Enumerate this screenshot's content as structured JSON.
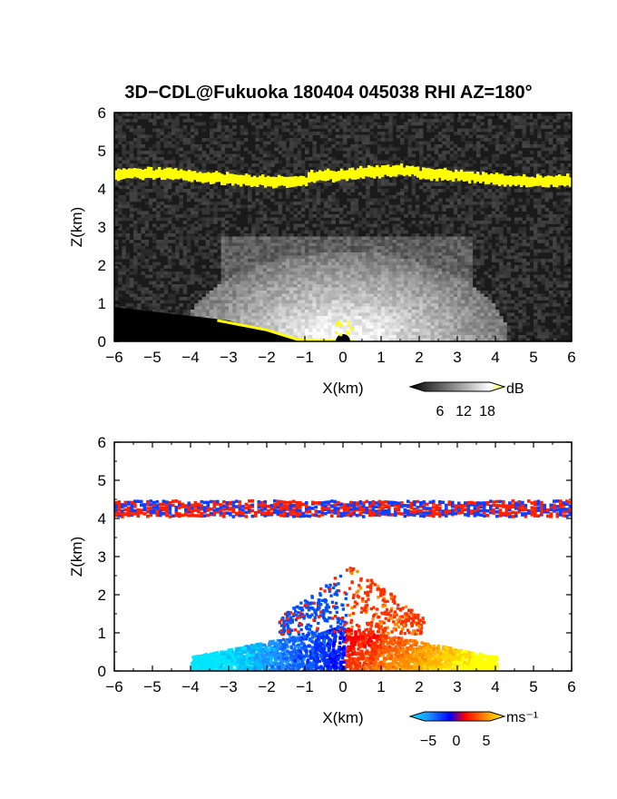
{
  "title": "3D−CDL@Fukuoka 180404 045038 RHI AZ=180°",
  "chart_data": [
    {
      "type": "heatmap",
      "name": "reflectivity",
      "xlabel": "X(km)",
      "ylabel": "Z(km)",
      "xlim": [
        -6,
        6
      ],
      "ylim": [
        0,
        6
      ],
      "xticks": [
        "−6",
        "−5",
        "−4",
        "−3",
        "−2",
        "−1",
        "0",
        "1",
        "2",
        "3",
        "4",
        "5",
        "6"
      ],
      "yticks": [
        "0",
        "1",
        "2",
        "3",
        "4",
        "5",
        "6"
      ],
      "colorbar": {
        "unit": "dB",
        "ticks": [
          "6",
          "12",
          "18"
        ],
        "range": [
          0,
          20
        ]
      },
      "features": {
        "cloud_layer_z_km": 4.3,
        "cloud_layer_color": "#ffff00",
        "background_color": "#1a1a1a"
      }
    },
    {
      "type": "heatmap",
      "name": "doppler_velocity",
      "xlabel": "X(km)",
      "ylabel": "Z(km)",
      "xlim": [
        -6,
        6
      ],
      "ylim": [
        0,
        6
      ],
      "xticks": [
        "−6",
        "−5",
        "−4",
        "−3",
        "−2",
        "−1",
        "0",
        "1",
        "2",
        "3",
        "4",
        "5",
        "6"
      ],
      "yticks": [
        "0",
        "1",
        "2",
        "3",
        "4",
        "5",
        "6"
      ],
      "colorbar": {
        "unit": "ms⁻¹",
        "ticks": [
          "−5",
          "0",
          "5"
        ],
        "range": [
          -7,
          7
        ]
      },
      "features": {
        "cloud_layer_z_km": 4.3,
        "background_color": "#ffffff"
      }
    }
  ]
}
